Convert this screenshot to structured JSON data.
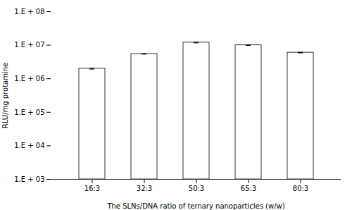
{
  "chart_data": {
    "type": "bar",
    "categories": [
      "16:3",
      "32:3",
      "50:3",
      "65:3",
      "80:3"
    ],
    "values": [
      2000000,
      5500000,
      12000000,
      10000000,
      6000000
    ],
    "errors": [
      70000,
      100000,
      300000,
      180000,
      130000
    ],
    "ylabel": "RLU/mg protamine",
    "xlabel": "The SLNs/DNA ratio of ternary nanoparticles (w/w)",
    "color": "#ffffff",
    "log": "y",
    "grid": false,
    "ylim": [
      1000,
      100000000
    ],
    "yticks": [
      {
        "value": 1000,
        "label": "1.E + 03"
      },
      {
        "value": 10000,
        "label": "1.E + 04"
      },
      {
        "value": 100000,
        "label": "1.E + 05"
      },
      {
        "value": 1000000,
        "label": "1.E + 06"
      },
      {
        "value": 10000000,
        "label": "1.E + 07"
      },
      {
        "value": 100000000,
        "label": "1.E + 08"
      }
    ]
  }
}
